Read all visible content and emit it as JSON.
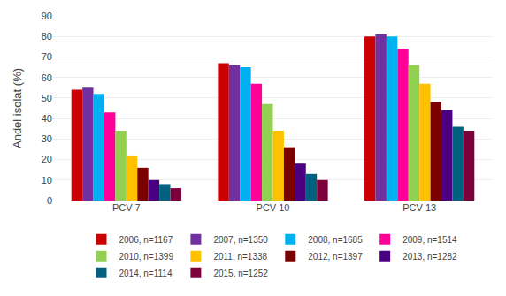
{
  "chart_data": {
    "type": "bar",
    "categories": [
      "PCV 7",
      "PCV 10",
      "PCV 13"
    ],
    "series": [
      {
        "name": "2006, n=1167",
        "color": "#CC0000",
        "values": [
          54,
          67,
          80
        ]
      },
      {
        "name": "2007, n=1350",
        "color": "#7030A0",
        "values": [
          55,
          66,
          81
        ]
      },
      {
        "name": "2008, n=1685",
        "color": "#00B0F0",
        "values": [
          52,
          65,
          80
        ]
      },
      {
        "name": "2009, n=1514",
        "color": "#FF0099",
        "values": [
          43,
          57,
          74
        ]
      },
      {
        "name": "2010, n=1399",
        "color": "#92D050",
        "values": [
          34,
          47,
          66
        ]
      },
      {
        "name": "2011, n=1338",
        "color": "#FFC000",
        "values": [
          22,
          34,
          57
        ]
      },
      {
        "name": "2012, n=1397",
        "color": "#7B0000",
        "values": [
          16,
          26,
          48
        ]
      },
      {
        "name": "2013, n=1282",
        "color": "#4B0082",
        "values": [
          10,
          18,
          44
        ]
      },
      {
        "name": "2014, n=1114",
        "color": "#006080",
        "values": [
          8,
          13,
          36
        ]
      },
      {
        "name": "2015, n=1252",
        "color": "#7B003B",
        "values": [
          6,
          10,
          34
        ]
      }
    ],
    "ylabel": "Andel isolat (%)",
    "ylim": [
      0,
      90
    ],
    "yticks": [
      0,
      10,
      20,
      30,
      40,
      50,
      60,
      70,
      80,
      90
    ],
    "grid": true,
    "legend": "bottom"
  }
}
